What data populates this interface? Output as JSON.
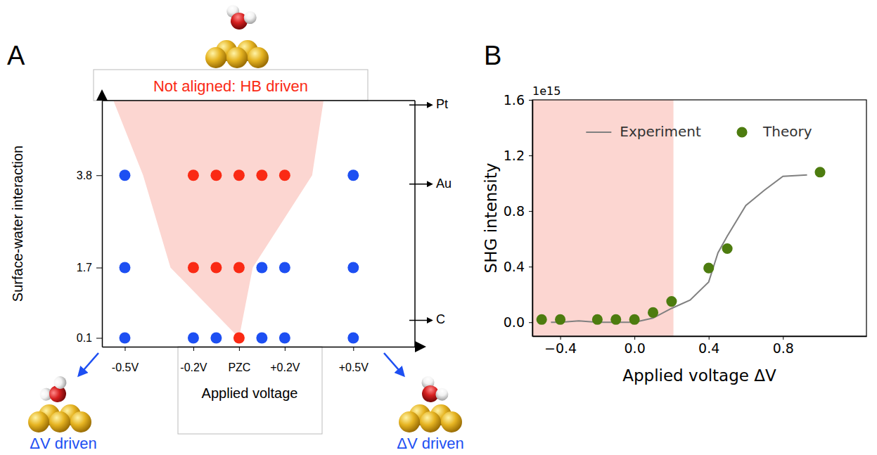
{
  "chart_data": [
    {
      "type": "scatter",
      "panel": "A",
      "x_label": "Applied voltage",
      "y_label": "Surface-water interaction",
      "xlim": [
        -0.6,
        0.77
      ],
      "ylim": [
        -0.1,
        5.5
      ],
      "xticks": [
        {
          "value": -0.5,
          "label": "-0.5V"
        },
        {
          "value": -0.2,
          "label": "-0.2V"
        },
        {
          "value": 0,
          "label": "PZC"
        },
        {
          "value": 0.2,
          "label": "+0.2V"
        },
        {
          "value": 0.5,
          "label": "+0.5V"
        }
      ],
      "yticks": [
        0.1,
        1.7,
        3.8
      ],
      "series": [
        {
          "color": "#fa2a14",
          "marker": "circle",
          "x": [
            -0.2,
            -0.1,
            0,
            0.1,
            0.2,
            -0.2,
            -0.1,
            0,
            0
          ],
          "values": [
            3.8,
            3.8,
            3.8,
            3.8,
            3.8,
            1.7,
            1.7,
            1.7,
            0.1
          ]
        },
        {
          "color": "#1d4ff2",
          "marker": "circle",
          "x": [
            -0.5,
            0.5,
            -0.5,
            0.1,
            0.2,
            0.5,
            -0.5,
            -0.2,
            -0.1,
            0.1,
            0.2,
            0.5
          ],
          "values": [
            3.8,
            3.8,
            1.7,
            1.7,
            1.7,
            1.7,
            0.1,
            0.1,
            0.1,
            0.1,
            0.1,
            0.1
          ]
        }
      ],
      "region": {
        "x": [
          -0.55,
          -0.42,
          -0.3,
          0,
          0.06,
          0.32,
          0.37
        ],
        "y": [
          5.5,
          3.8,
          1.7,
          0.1,
          1.7,
          3.8,
          5.5
        ],
        "color": "#fcd6d1"
      },
      "region_label": "Not aligned: HB driven",
      "side_labels": [
        {
          "text": "Pt",
          "y": 5.4
        },
        {
          "text": "Au",
          "y": 3.6
        },
        {
          "text": "C",
          "y": 0.5
        }
      ],
      "corner_labels": [
        "ΔV driven",
        "ΔV driven"
      ]
    },
    {
      "type": "line",
      "panel": "B",
      "x_label": "Applied voltage ΔV",
      "y_label": "SHG intensity",
      "y_multiplier": "1e15",
      "xlim": [
        -0.55,
        1.25
      ],
      "ylim": [
        -0.1,
        1.6
      ],
      "xticks": [
        {
          "value": -0.4,
          "label": "−0.4"
        },
        {
          "value": 0,
          "label": "0.0"
        },
        0.4,
        0.8
      ],
      "yticks": [
        {
          "value": 0,
          "label": "0.0"
        },
        0.4,
        0.8,
        1.2,
        1.6
      ],
      "legend": "upper center",
      "series": [
        {
          "name": "Experiment",
          "type": "line",
          "color": "#808080",
          "line_style": "solid",
          "x": [
            -0.45,
            -0.4,
            -0.3,
            -0.2,
            -0.1,
            0.0,
            0.1,
            0.2,
            0.3,
            0.4,
            0.45,
            0.5,
            0.6,
            0.7,
            0.8,
            0.93
          ],
          "values": [
            0.0,
            0.0,
            0.01,
            0.0,
            0.0,
            0.0,
            0.03,
            0.1,
            0.16,
            0.29,
            0.5,
            0.62,
            0.84,
            0.95,
            1.05,
            1.06
          ]
        },
        {
          "name": "Theory",
          "type": "scatter",
          "color": "#4d7c0f",
          "marker": "circle",
          "x": [
            -0.5,
            -0.4,
            -0.2,
            -0.1,
            0.0,
            0.1,
            0.2,
            0.4,
            0.5,
            1.0
          ],
          "values": [
            0.02,
            0.02,
            0.02,
            0.02,
            0.02,
            0.07,
            0.15,
            0.39,
            0.53,
            1.08
          ]
        }
      ],
      "region": {
        "x": [
          -0.55,
          0.21
        ],
        "color": "#fcd6d1"
      }
    }
  ]
}
